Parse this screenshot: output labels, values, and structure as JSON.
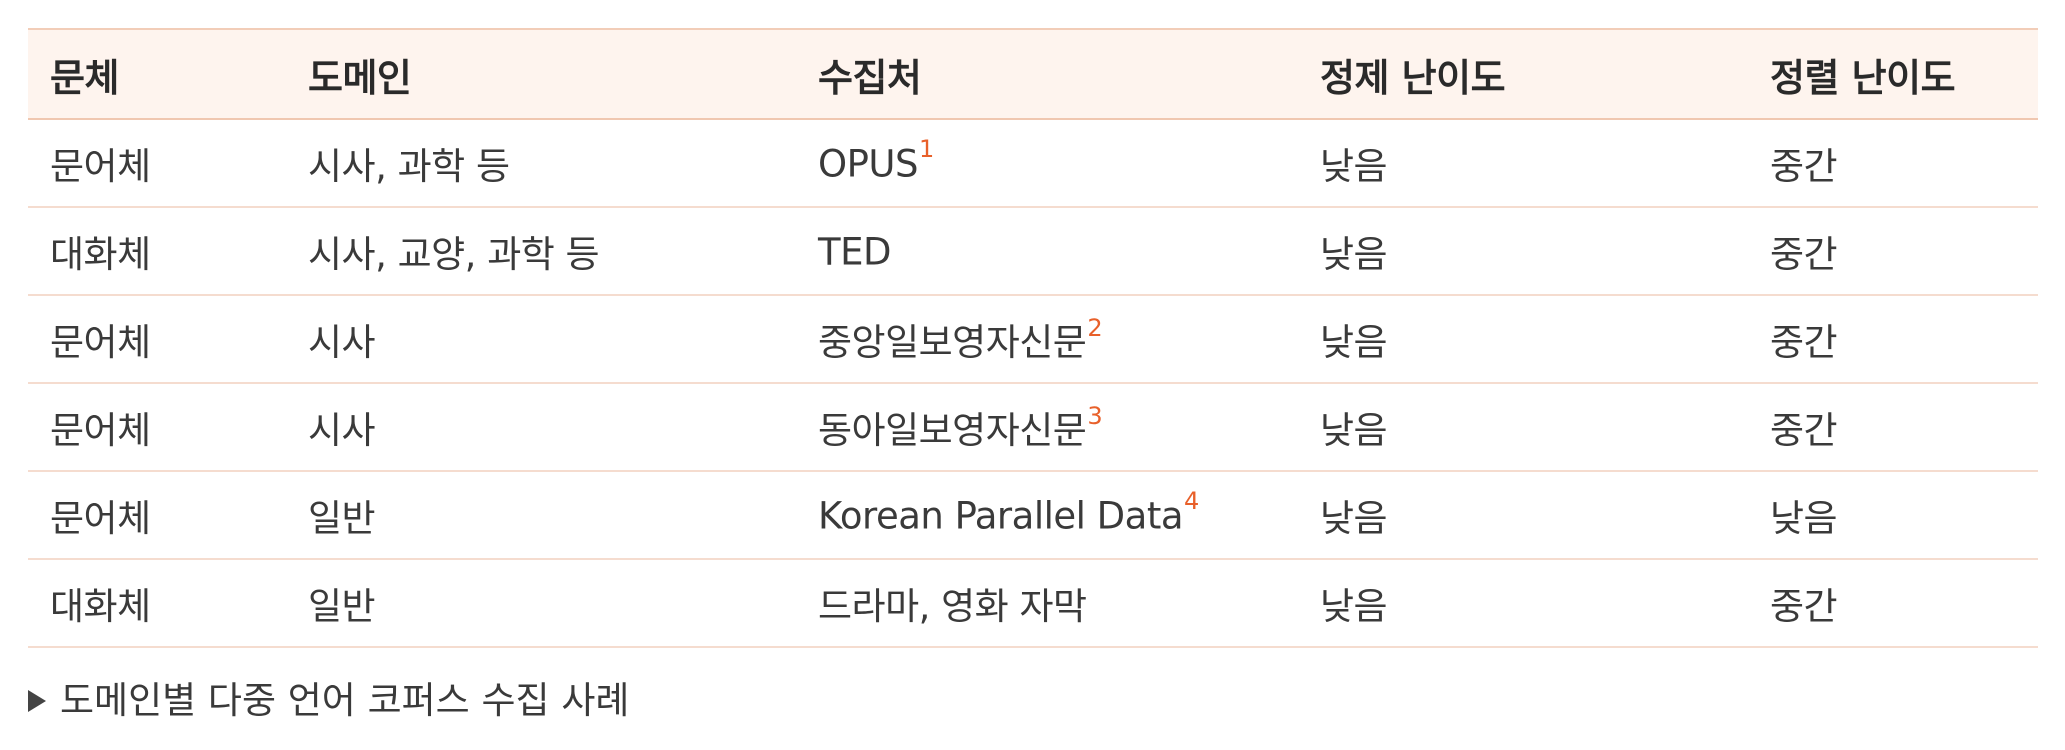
{
  "headers": [
    "문체",
    "도메인",
    "수집처",
    "정제 난이도",
    "정렬 난이도"
  ],
  "rows": [
    {
      "style": "문어체",
      "domain": "시사, 과학 등",
      "source": "OPUS",
      "note": "1",
      "clean": "낮음",
      "align": "중간"
    },
    {
      "style": "대화체",
      "domain": "시사, 교양, 과학 등",
      "source": "TED",
      "note": "",
      "clean": "낮음",
      "align": "중간"
    },
    {
      "style": "문어체",
      "domain": "시사",
      "source": "중앙일보영자신문",
      "note": "2",
      "clean": "낮음",
      "align": "중간"
    },
    {
      "style": "문어체",
      "domain": "시사",
      "source": "동아일보영자신문",
      "note": "3",
      "clean": "낮음",
      "align": "중간"
    },
    {
      "style": "문어체",
      "domain": "일반",
      "source": "Korean Parallel Data",
      "note": "4",
      "clean": "낮음",
      "align": "낮음"
    },
    {
      "style": "대화체",
      "domain": "일반",
      "source": "드라마, 영화 자막",
      "note": "",
      "clean": "낮음",
      "align": "중간"
    }
  ],
  "caption": "도메인별 다중 언어 코퍼스 수집 사례",
  "colors": {
    "header_bg": "#fef4ee",
    "rule": "#f5dccf",
    "footnote": "#e8602a"
  }
}
